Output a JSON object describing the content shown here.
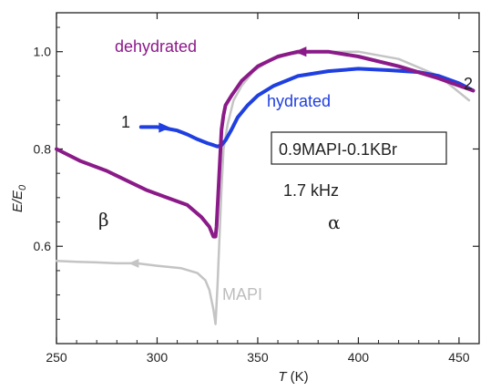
{
  "chart_data": {
    "type": "line",
    "xlabel": "T (K)",
    "ylabel": "E/E0",
    "xlim": [
      250,
      460
    ],
    "ylim": [
      0.4,
      1.08
    ],
    "x_ticks": [
      "250",
      "300",
      "350",
      "400",
      "450"
    ],
    "y_ticks": [
      "0.6",
      "0.8",
      "1.0"
    ],
    "x_tick_values": [
      250,
      300,
      350,
      400,
      450
    ],
    "y_tick_values": [
      0.6,
      0.8,
      1.0
    ],
    "grid": false,
    "colors": {
      "dehydrated": "#8b1a89",
      "hydrated": "#1f3fe0",
      "MAPI": "#c4c4c4",
      "text": "#222222"
    },
    "series": [
      {
        "name": "dehydrated",
        "x": [
          457,
          440,
          420,
          400,
          385,
          370,
          360,
          350,
          342,
          337,
          334,
          333,
          332,
          331.5,
          331,
          330.5,
          330,
          329.5,
          329,
          328,
          326,
          322,
          315,
          305,
          295,
          285,
          275,
          262,
          250
        ],
        "y": [
          0.92,
          0.945,
          0.97,
          0.99,
          1.0,
          1.0,
          0.99,
          0.97,
          0.94,
          0.91,
          0.89,
          0.87,
          0.84,
          0.8,
          0.76,
          0.72,
          0.68,
          0.64,
          0.62,
          0.62,
          0.64,
          0.66,
          0.685,
          0.7,
          0.715,
          0.735,
          0.755,
          0.775,
          0.8
        ]
      },
      {
        "name": "hydrated",
        "x": [
          292,
          300,
          305,
          310,
          315,
          320,
          325,
          328,
          330,
          332,
          334,
          337,
          340,
          345,
          350,
          358,
          370,
          385,
          400,
          415,
          430,
          440,
          450,
          457
        ],
        "y": [
          0.845,
          0.845,
          0.842,
          0.838,
          0.83,
          0.82,
          0.812,
          0.808,
          0.805,
          0.808,
          0.818,
          0.84,
          0.865,
          0.89,
          0.91,
          0.93,
          0.95,
          0.96,
          0.965,
          0.962,
          0.958,
          0.95,
          0.935,
          0.92
        ]
      },
      {
        "name": "MAPI",
        "x": [
          455,
          440,
          420,
          400,
          380,
          365,
          355,
          348,
          342,
          338,
          335,
          333,
          332,
          331,
          330,
          329,
          328,
          327,
          326,
          324,
          320,
          312,
          300,
          290,
          280,
          270,
          260,
          250
        ],
        "y": [
          0.9,
          0.95,
          0.985,
          1.0,
          1.0,
          0.995,
          0.98,
          0.96,
          0.93,
          0.9,
          0.85,
          0.8,
          0.72,
          0.62,
          0.52,
          0.44,
          0.47,
          0.49,
          0.51,
          0.53,
          0.545,
          0.555,
          0.56,
          0.565,
          0.565,
          0.567,
          0.568,
          0.57
        ]
      }
    ],
    "annotations": {
      "dehydrated": "dehydrated",
      "hydrated": "hydrated",
      "mapi": "MAPI",
      "start_marker": "1",
      "end_marker": "2",
      "composition": "0.9MAPI-0.1KBr",
      "frequency": "1.7 kHz",
      "beta_phase": "β",
      "alpha_phase": "α"
    }
  }
}
